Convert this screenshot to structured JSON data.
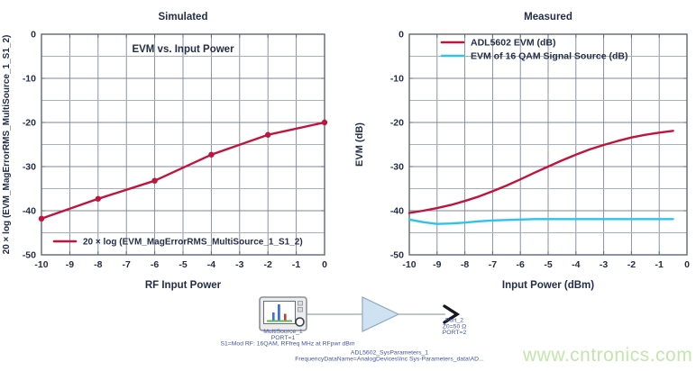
{
  "colors": {
    "series_red": "#c0143c",
    "series_cyan": "#2cc4ee",
    "grid_minor": "#a8afbd",
    "grid_major": "#7d879b",
    "axis_border": "#5d6678",
    "chart_text": "#232e47",
    "schematic_text": "#4055a8",
    "amp_fill": "#cfe2f2",
    "amp_stroke": "#90a8c0",
    "wire": "#9aa2ae",
    "watermark_green": "#c3e7ab"
  },
  "chart_data": [
    {
      "type": "line",
      "title": "Simulated",
      "annotation": "EVM vs. Input Power",
      "xlabel": "RF Input Power",
      "ylabel": "20 × log (EVM_MagErrorRMS_MultiSource_1_S1_2)",
      "xlim": [
        -10,
        0
      ],
      "ylim": [
        -50,
        0
      ],
      "xticks": [
        -10,
        -9,
        -8,
        -7,
        -6,
        -5,
        -4,
        -3,
        -2,
        -1,
        0
      ],
      "yticks": [
        0,
        -10,
        -20,
        -30,
        -40,
        -50
      ],
      "grid": {
        "on": true,
        "x_step": 1,
        "y_step": 5
      },
      "legend_position": "inside-bottom-left",
      "series": [
        {
          "name": "20 × log (EVM_MagErrorRMS_MultiSource_1_S1_2)",
          "color": "#c0143c",
          "marker": true,
          "x": [
            -10,
            -8,
            -6,
            -4,
            -2,
            0
          ],
          "y": [
            -41.8,
            -37.3,
            -33.2,
            -27.3,
            -22.8,
            -20.0
          ]
        }
      ]
    },
    {
      "type": "line",
      "title": "Measured",
      "annotation": "",
      "xlabel": "Input Power (dBm)",
      "ylabel": "EVM (dB)",
      "xlim": [
        -10,
        0
      ],
      "ylim": [
        -50,
        0
      ],
      "xticks": [
        -10,
        -9,
        -8,
        -7,
        -6,
        -5,
        -4,
        -3,
        -2,
        -1,
        0
      ],
      "yticks": [
        0,
        -10,
        -20,
        -30,
        -40,
        -50
      ],
      "grid": {
        "on": true,
        "x_step": 1,
        "y_step": 5
      },
      "legend_position": "inside-top-left",
      "series": [
        {
          "name": "ADL5602 EVM (dB)",
          "color": "#c0143c",
          "marker": false,
          "x": [
            -10,
            -9.5,
            -9,
            -8.5,
            -8,
            -7.5,
            -7,
            -6.5,
            -6,
            -5.5,
            -5,
            -4.5,
            -4,
            -3.5,
            -3,
            -2.5,
            -2,
            -1.5,
            -1,
            -0.5
          ],
          "y": [
            -40.5,
            -40.0,
            -39.4,
            -38.7,
            -37.8,
            -36.8,
            -35.6,
            -34.3,
            -32.9,
            -31.4,
            -30.0,
            -28.6,
            -27.3,
            -26.1,
            -25.1,
            -24.2,
            -23.4,
            -22.8,
            -22.3,
            -21.9
          ]
        },
        {
          "name": "EVM of 16 QAM Signal Source (dB)",
          "color": "#2cc4ee",
          "marker": false,
          "x": [
            -10,
            -9.5,
            -9,
            -8.5,
            -8,
            -7.5,
            -7,
            -6.5,
            -6,
            -5.5,
            -5,
            -4.5,
            -4,
            -3.5,
            -3,
            -2.5,
            -2,
            -1.5,
            -1,
            -0.5
          ],
          "y": [
            -42.0,
            -42.6,
            -43.0,
            -42.9,
            -42.7,
            -42.4,
            -42.2,
            -42.1,
            -42.0,
            -41.9,
            -41.9,
            -41.9,
            -41.9,
            -41.9,
            -41.9,
            -41.9,
            -41.9,
            -41.9,
            -41.9,
            -41.9
          ]
        }
      ]
    }
  ],
  "schematic": {
    "source_name": "MultiSource_1",
    "source_port": "PORT=1",
    "source_params": "S1=Mod RF: 16QAM, RFfreq MHz at RFpwr dBm",
    "amp_name": "ADL5602_SysParameters_1",
    "amp_params": "FrequencyDataName=AnalogDevices\\Inc Sys-Parameters_data\\AD...",
    "out_port_name": "Port_2",
    "out_port_z": "Z0=50 Ω",
    "out_port_num": "PORT=2"
  },
  "watermark": {
    "text": "www.cntronics.com"
  }
}
